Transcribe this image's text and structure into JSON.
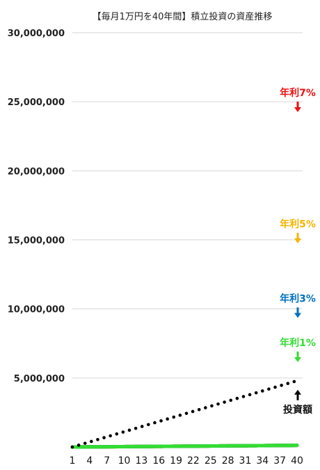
{
  "chart_data": {
    "type": "line",
    "title": "【毎月1万円を40年間】積立投資の資産推移",
    "xlabel": "",
    "ylabel": "",
    "xlim": [
      1,
      40
    ],
    "ylim": [
      0,
      30000000
    ],
    "grid": true,
    "y_ticks": [
      "30,000,000",
      "25,000,000",
      "20,000,000",
      "15,000,000",
      "10,000,000",
      "5,000,000"
    ],
    "y_tick_values": [
      30000000,
      25000000,
      20000000,
      15000000,
      10000000,
      5000000
    ],
    "x_ticks": [
      "1",
      "4",
      "7",
      "10",
      "13",
      "16",
      "19",
      "22",
      "25",
      "28",
      "31",
      "34",
      "37",
      "40"
    ],
    "series": [
      {
        "name": "年利7%",
        "rate": 0.07,
        "color": "#ee1111",
        "final_value": 24000000
      },
      {
        "name": "年利5%",
        "rate": 0.05,
        "color": "#f5b400",
        "final_value": 14500000
      },
      {
        "name": "年利3%",
        "rate": 0.03,
        "color": "#0070c0",
        "final_value": 9100000
      },
      {
        "name": "年利1%",
        "rate": 0.01,
        "color": "#33dd33",
        "final_value": 5900000
      },
      {
        "name": "投資額",
        "rate": 0,
        "color": "#000000",
        "style": "dotted",
        "final_value": 4800000
      }
    ]
  }
}
